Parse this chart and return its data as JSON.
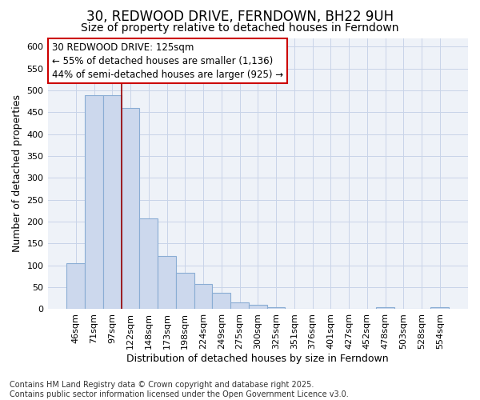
{
  "title": "30, REDWOOD DRIVE, FERNDOWN, BH22 9UH",
  "subtitle": "Size of property relative to detached houses in Ferndown",
  "xlabel": "Distribution of detached houses by size in Ferndown",
  "ylabel": "Number of detached properties",
  "footer_line1": "Contains HM Land Registry data © Crown copyright and database right 2025.",
  "footer_line2": "Contains public sector information licensed under the Open Government Licence v3.0.",
  "categories": [
    "46sqm",
    "71sqm",
    "97sqm",
    "122sqm",
    "148sqm",
    "173sqm",
    "198sqm",
    "224sqm",
    "249sqm",
    "275sqm",
    "300sqm",
    "325sqm",
    "351sqm",
    "376sqm",
    "401sqm",
    "427sqm",
    "452sqm",
    "478sqm",
    "503sqm",
    "528sqm",
    "554sqm"
  ],
  "values": [
    105,
    490,
    490,
    460,
    207,
    122,
    83,
    57,
    38,
    15,
    10,
    5,
    0,
    0,
    0,
    0,
    0,
    5,
    0,
    0,
    5
  ],
  "bar_color": "#ccd8ed",
  "bar_edge_color": "#8aadd4",
  "grid_color": "#c8d4e8",
  "background_color": "#ffffff",
  "plot_bg_color": "#eef2f8",
  "vline_x": 2.5,
  "vline_color": "#990000",
  "annotation_line1": "30 REDWOOD DRIVE: 125sqm",
  "annotation_line2": "← 55% of detached houses are smaller (1,136)",
  "annotation_line3": "44% of semi-detached houses are larger (925) →",
  "annotation_box_color": "#ffffff",
  "annotation_box_edge_color": "#cc0000",
  "ylim": [
    0,
    620
  ],
  "yticks": [
    0,
    50,
    100,
    150,
    200,
    250,
    300,
    350,
    400,
    450,
    500,
    550,
    600
  ],
  "title_fontsize": 12,
  "subtitle_fontsize": 10,
  "axis_label_fontsize": 9,
  "tick_fontsize": 8,
  "annotation_fontsize": 8.5,
  "footer_fontsize": 7
}
